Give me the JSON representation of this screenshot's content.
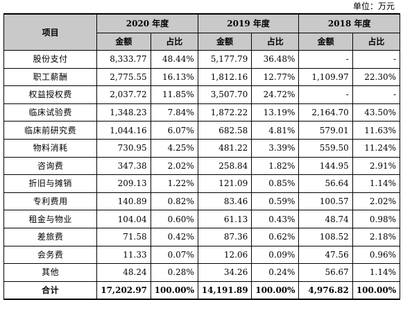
{
  "unit_label": "单位：万元",
  "header": {
    "item_label": "项目",
    "years": [
      "2020 年度",
      "2019 年度",
      "2018 年度"
    ],
    "amount_label": "金额",
    "ratio_label": "占比"
  },
  "rows": [
    {
      "item": "股份支付",
      "v": [
        "8,333.77",
        "48.44%",
        "5,177.79",
        "36.48%",
        "-",
        "-"
      ]
    },
    {
      "item": "职工薪酬",
      "v": [
        "2,775.55",
        "16.13%",
        "1,812.16",
        "12.77%",
        "1,109.97",
        "22.30%"
      ]
    },
    {
      "item": "权益授权费",
      "v": [
        "2,037.72",
        "11.85%",
        "3,507.70",
        "24.72%",
        "-",
        "-"
      ]
    },
    {
      "item": "临床试验费",
      "v": [
        "1,348.23",
        "7.84%",
        "1,872.22",
        "13.19%",
        "2,164.70",
        "43.50%"
      ]
    },
    {
      "item": "临床前研究费",
      "v": [
        "1,044.16",
        "6.07%",
        "682.58",
        "4.81%",
        "579.01",
        "11.63%"
      ]
    },
    {
      "item": "物料消耗",
      "v": [
        "730.95",
        "4.25%",
        "481.22",
        "3.39%",
        "559.50",
        "11.24%"
      ]
    },
    {
      "item": "咨询费",
      "v": [
        "347.38",
        "2.02%",
        "258.84",
        "1.82%",
        "144.95",
        "2.91%"
      ]
    },
    {
      "item": "折旧与摊销",
      "v": [
        "209.13",
        "1.22%",
        "121.09",
        "0.85%",
        "56.64",
        "1.14%"
      ]
    },
    {
      "item": "专利费用",
      "v": [
        "140.89",
        "0.82%",
        "83.46",
        "0.59%",
        "100.57",
        "2.02%"
      ]
    },
    {
      "item": "租金与物业",
      "v": [
        "104.04",
        "0.60%",
        "61.13",
        "0.43%",
        "48.74",
        "0.98%"
      ]
    },
    {
      "item": "差旅费",
      "v": [
        "71.58",
        "0.42%",
        "87.36",
        "0.62%",
        "108.52",
        "2.18%"
      ]
    },
    {
      "item": "会务费",
      "v": [
        "11.33",
        "0.07%",
        "12.06",
        "0.09%",
        "47.56",
        "0.96%"
      ]
    },
    {
      "item": "其他",
      "v": [
        "48.24",
        "0.28%",
        "34.26",
        "0.24%",
        "56.67",
        "1.14%"
      ]
    }
  ],
  "total": {
    "item": "合计",
    "v": [
      "17,202.97",
      "100.00%",
      "14,191.89",
      "100.00%",
      "4,976.82",
      "100.00%"
    ]
  }
}
